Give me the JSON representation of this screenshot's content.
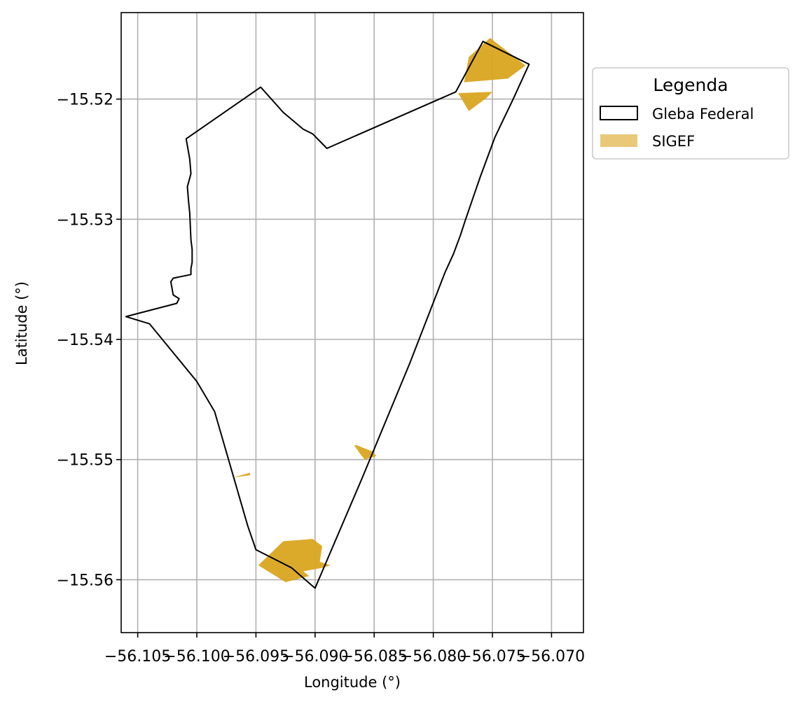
{
  "chart_data": {
    "type": "map",
    "xlabel": "Longitude (°)",
    "ylabel": "Latitude (°)",
    "xlim": [
      -56.1064,
      -56.0673
    ],
    "ylim": [
      -15.5644,
      -15.5128
    ],
    "grid": true,
    "x_ticks": [
      -56.105,
      -56.1,
      -56.095,
      -56.09,
      -56.085,
      -56.08,
      -56.075,
      -56.07
    ],
    "x_tick_labels": [
      "−56.105",
      "−56.100",
      "−56.095",
      "−56.090",
      "−56.085",
      "−56.080",
      "−56.075",
      "−56.070"
    ],
    "y_ticks": [
      -15.52,
      -15.53,
      -15.54,
      -15.55,
      -15.56
    ],
    "y_tick_labels": [
      "−15.52",
      "−15.53",
      "−15.54",
      "−15.55",
      "−15.56"
    ],
    "legend": {
      "title": "Legenda",
      "placement": "outside upper right",
      "entries": [
        {
          "label": "Gleba Federal",
          "style": "outline",
          "color": "#000000"
        },
        {
          "label": "SIGEF",
          "style": "fill",
          "color": "#DAA520"
        }
      ]
    },
    "layers": [
      {
        "name": "Gleba Federal",
        "fill": "none",
        "stroke": "#000000",
        "polygons": [
          [
            [
              -56.1009,
              -15.5233
            ],
            [
              -56.0946,
              -15.519
            ],
            [
              -56.0927,
              -15.5211
            ],
            [
              -56.091,
              -15.5225
            ],
            [
              -56.0902,
              -15.5229
            ],
            [
              -56.089,
              -15.5241
            ],
            [
              -56.0781,
              -15.5194
            ],
            [
              -56.0758,
              -15.5152
            ],
            [
              -56.0719,
              -15.5171
            ],
            [
              -56.0732,
              -15.5199
            ],
            [
              -56.0748,
              -15.5232
            ],
            [
              -56.076,
              -15.5264
            ],
            [
              -56.0766,
              -15.5281
            ],
            [
              -56.0773,
              -15.5301
            ],
            [
              -56.0777,
              -15.5313
            ],
            [
              -56.0783,
              -15.5329
            ],
            [
              -56.079,
              -15.5344
            ],
            [
              -56.082,
              -15.542
            ],
            [
              -56.086,
              -15.5515
            ],
            [
              -56.09,
              -15.5607
            ],
            [
              -56.092,
              -15.559
            ],
            [
              -56.095,
              -15.5575
            ],
            [
              -56.0957,
              -15.5555
            ],
            [
              -56.0985,
              -15.546
            ],
            [
              -56.1,
              -15.5435
            ],
            [
              -56.104,
              -15.5387
            ],
            [
              -56.106,
              -15.5381
            ],
            [
              -56.1017,
              -15.537
            ],
            [
              -56.1015,
              -15.5366
            ],
            [
              -56.102,
              -15.5363
            ],
            [
              -56.1022,
              -15.5352
            ],
            [
              -56.102,
              -15.5349
            ],
            [
              -56.1005,
              -15.5346
            ],
            [
              -56.1005,
              -15.5341
            ],
            [
              -56.1004,
              -15.5336
            ],
            [
              -56.1004,
              -15.5325
            ],
            [
              -56.1005,
              -15.5317
            ],
            [
              -56.1006,
              -15.5295
            ],
            [
              -56.1007,
              -15.5285
            ],
            [
              -56.1008,
              -15.5273
            ],
            [
              -56.1005,
              -15.5262
            ],
            [
              -56.1006,
              -15.525
            ],
            [
              -56.1009,
              -15.5233
            ]
          ]
        ]
      },
      {
        "name": "SIGEF",
        "fill": "#DAA520",
        "stroke": "none",
        "polygons": [
          [
            [
              -56.0752,
              -15.5149
            ],
            [
              -56.0722,
              -15.5172
            ],
            [
              -56.0737,
              -15.5183
            ],
            [
              -56.0774,
              -15.5186
            ],
            [
              -56.077,
              -15.5165
            ]
          ],
          [
            [
              -56.0779,
              -15.5195
            ],
            [
              -56.077,
              -15.521
            ],
            [
              -56.0755,
              -15.5199
            ],
            [
              -56.075,
              -15.5194
            ]
          ],
          [
            [
              -56.0865,
              -15.5488
            ],
            [
              -56.0852,
              -15.5493
            ],
            [
              -56.0848,
              -15.5497
            ],
            [
              -56.0858,
              -15.55
            ],
            [
              -56.0862,
              -15.5495
            ],
            [
              -56.0867,
              -15.5488
            ]
          ],
          [
            [
              -56.097,
              -15.5515
            ],
            [
              -56.0955,
              -15.5511
            ],
            [
              -56.0955,
              -15.5513
            ]
          ],
          [
            [
              -56.0902,
              -15.5566
            ],
            [
              -56.0894,
              -15.5572
            ],
            [
              -56.0896,
              -15.5585
            ],
            [
              -56.0887,
              -15.5588
            ],
            [
              -56.0893,
              -15.559
            ],
            [
              -56.091,
              -15.5593
            ],
            [
              -56.0905,
              -15.5597
            ],
            [
              -56.0925,
              -15.5602
            ],
            [
              -56.0948,
              -15.5588
            ],
            [
              -56.0927,
              -15.5568
            ]
          ]
        ]
      }
    ]
  }
}
